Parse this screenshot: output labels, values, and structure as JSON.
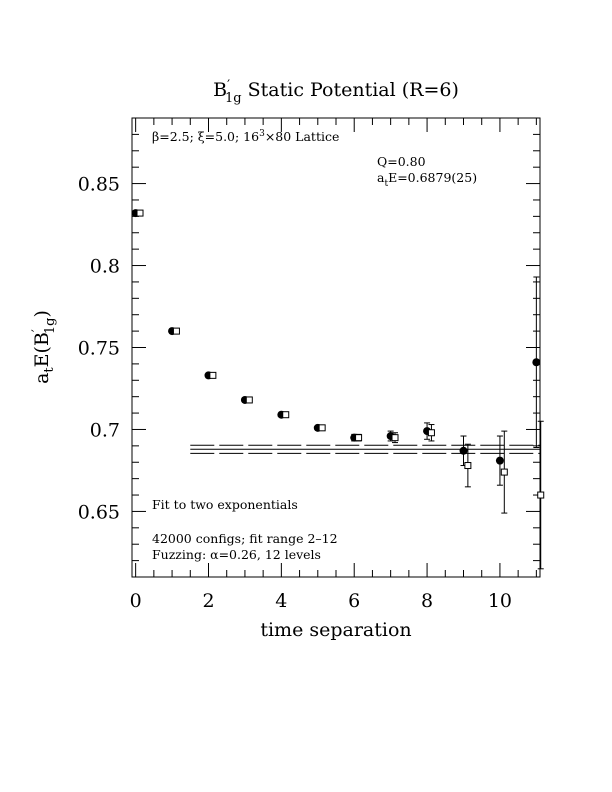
{
  "chart_data": {
    "type": "scatter",
    "title": "B′1g Static Potential (R=6)",
    "title_main": "B",
    "title_prime": "′",
    "title_sub": "1g",
    "title_rest": " Static Potential (R=6)",
    "xlabel": "time separation",
    "ylabel": "a_t E(B′1g)",
    "ylabel_a": "a",
    "ylabel_t": "t",
    "ylabel_E": "E(B",
    "ylabel_prime": "′",
    "ylabel_sub": "1g",
    "ylabel_close": ")",
    "xlim": [
      -0.1,
      11.1
    ],
    "ylim": [
      0.61,
      0.89
    ],
    "xticks": [
      0,
      2,
      4,
      6,
      8,
      10
    ],
    "xtick_labels": [
      "0",
      "2",
      "4",
      "6",
      "8",
      "10"
    ],
    "yticks": [
      0.65,
      0.7,
      0.75,
      0.8,
      0.85
    ],
    "ytick_labels": [
      "0.65",
      "0.7",
      "0.75",
      "0.8",
      "0.85"
    ],
    "grid": false,
    "series": [
      {
        "marker": "filled-circle",
        "x": [
          0,
          1,
          2,
          3,
          4,
          5,
          6,
          7,
          8,
          9,
          10,
          11
        ],
        "y": [
          0.832,
          0.76,
          0.733,
          0.718,
          0.709,
          0.701,
          0.695,
          0.696,
          0.699,
          0.687,
          0.681,
          0.741
        ],
        "err": [
          0.001,
          0.001,
          0.001,
          0.001,
          0.001,
          0.001,
          0.002,
          0.003,
          0.005,
          0.009,
          0.015,
          0.052
        ]
      },
      {
        "marker": "open-square",
        "x": [
          0.12,
          1.12,
          2.12,
          3.12,
          4.12,
          5.12,
          6.12,
          7.12,
          8.12,
          9.12,
          10.12,
          11.12
        ],
        "y": [
          0.832,
          0.76,
          0.733,
          0.718,
          0.709,
          0.701,
          0.695,
          0.695,
          0.698,
          0.678,
          0.674,
          0.66
        ],
        "err": [
          0.001,
          0.001,
          0.001,
          0.001,
          0.001,
          0.001,
          0.002,
          0.003,
          0.005,
          0.013,
          0.025,
          0.045
        ]
      }
    ],
    "fit": {
      "x_range": [
        1.5,
        11.1
      ],
      "central": 0.6879,
      "error": 0.0025
    },
    "annotations": {
      "lattice_beta": "β=2.5; ξ=5.0; 16",
      "lattice_exp": "3",
      "lattice_rest": "×80 Lattice",
      "q_value": "Q=0.80",
      "energy_a": "a",
      "energy_t": "t",
      "energy_rest": "E=0.6879(25)",
      "fit_note": "Fit to two exponentials",
      "configs": "42000 configs; fit range 2–12",
      "fuzzing": "Fuzzing: α=0.26, 12 levels"
    }
  }
}
